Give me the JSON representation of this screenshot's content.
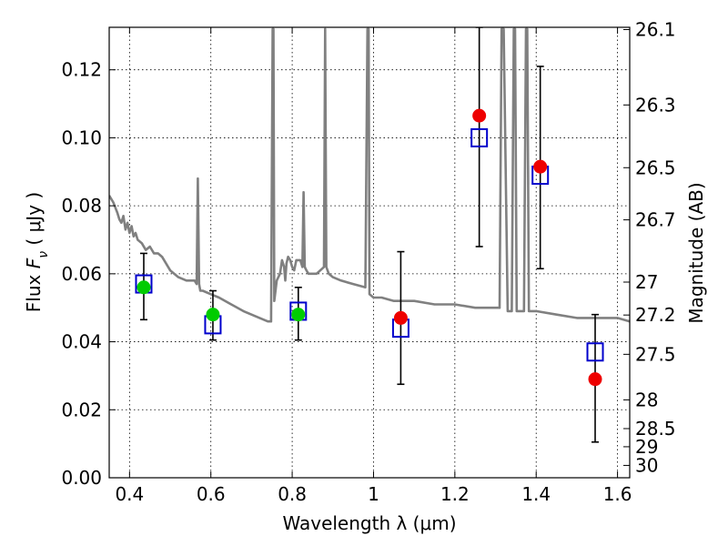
{
  "chart_data": {
    "type": "scatter",
    "title": "",
    "xlabel": "Wavelength  λ (μm)",
    "ylabel": "Flux  F_ν  ( μJy )",
    "ylabel_parts": {
      "prefix": "Flux  ",
      "var": "F",
      "sub": "ν",
      "unit": "  ( μJy )"
    },
    "ylabel_right": "Magnitude (AB)",
    "xlim": [
      0.35,
      1.63
    ],
    "ylim": [
      0.0,
      0.1325
    ],
    "grid": true,
    "x_ticks": [
      0.4,
      0.6,
      0.8,
      1.0,
      1.2,
      1.4,
      1.6
    ],
    "x_tick_labels": [
      "0.4",
      "0.6",
      "0.8",
      "1",
      "1.2",
      "1.4",
      "1.6"
    ],
    "y_ticks": [
      0.0,
      0.02,
      0.04,
      0.06,
      0.08,
      0.1,
      0.12
    ],
    "y_tick_labels": [
      "0.00",
      "0.02",
      "0.04",
      "0.06",
      "0.08",
      "0.10",
      "0.12"
    ],
    "right_axis": {
      "scale": "ab_magnitude",
      "ticks": [
        26.1,
        26.3,
        26.5,
        26.7,
        27,
        27.2,
        27.5,
        28,
        28.5,
        29,
        30
      ],
      "tick_labels": [
        "26.1",
        "26.3",
        "26.5",
        "26.7",
        "27",
        "27.2",
        "27.5",
        "28",
        "28.5",
        "29",
        "30"
      ]
    },
    "model_spectrum": {
      "color": "#808080",
      "x": [
        0.35,
        0.36,
        0.37,
        0.375,
        0.38,
        0.385,
        0.39,
        0.395,
        0.4,
        0.405,
        0.41,
        0.415,
        0.42,
        0.43,
        0.44,
        0.45,
        0.46,
        0.47,
        0.48,
        0.5,
        0.52,
        0.54,
        0.56,
        0.565,
        0.568,
        0.571,
        0.574,
        0.58,
        0.6,
        0.62,
        0.65,
        0.68,
        0.7,
        0.72,
        0.74,
        0.748,
        0.752,
        0.754,
        0.756,
        0.758,
        0.762,
        0.77,
        0.775,
        0.78,
        0.783,
        0.786,
        0.79,
        0.795,
        0.8,
        0.805,
        0.81,
        0.82,
        0.825,
        0.828,
        0.831,
        0.835,
        0.84,
        0.86,
        0.878,
        0.881,
        0.884,
        0.89,
        0.9,
        0.92,
        0.95,
        0.98,
        0.985,
        0.988,
        0.99,
        1.0,
        1.02,
        1.05,
        1.08,
        1.1,
        1.15,
        1.2,
        1.25,
        1.3,
        1.31,
        1.315,
        1.32,
        1.33,
        1.34,
        1.345,
        1.348,
        1.352,
        1.36,
        1.37,
        1.375,
        1.378,
        1.382,
        1.4,
        1.45,
        1.5,
        1.55,
        1.58,
        1.6,
        1.63
      ],
      "y": [
        0.083,
        0.081,
        0.078,
        0.076,
        0.075,
        0.077,
        0.073,
        0.075,
        0.072,
        0.074,
        0.071,
        0.072,
        0.07,
        0.069,
        0.067,
        0.068,
        0.066,
        0.066,
        0.065,
        0.061,
        0.059,
        0.058,
        0.058,
        0.057,
        0.088,
        0.057,
        0.055,
        0.055,
        0.054,
        0.053,
        0.051,
        0.049,
        0.048,
        0.047,
        0.046,
        0.046,
        0.132,
        0.132,
        0.052,
        0.054,
        0.058,
        0.06,
        0.064,
        0.062,
        0.058,
        0.063,
        0.065,
        0.064,
        0.062,
        0.061,
        0.064,
        0.064,
        0.062,
        0.084,
        0.062,
        0.061,
        0.06,
        0.06,
        0.062,
        0.132,
        0.062,
        0.06,
        0.059,
        0.058,
        0.057,
        0.056,
        0.132,
        0.132,
        0.054,
        0.053,
        0.053,
        0.052,
        0.052,
        0.052,
        0.051,
        0.051,
        0.05,
        0.05,
        0.05,
        0.132,
        0.132,
        0.049,
        0.049,
        0.132,
        0.132,
        0.049,
        0.049,
        0.049,
        0.132,
        0.132,
        0.049,
        0.049,
        0.048,
        0.047,
        0.047,
        0.047,
        0.047,
        0.046
      ]
    },
    "series": [
      {
        "marker": "open-square",
        "color": "#0000cc",
        "points": [
          [
            0.435,
            0.057
          ],
          [
            0.605,
            0.045
          ],
          [
            0.815,
            0.049
          ],
          [
            1.067,
            0.044
          ],
          [
            1.26,
            0.1
          ],
          [
            1.41,
            0.089
          ],
          [
            1.545,
            0.037
          ]
        ]
      },
      {
        "marker": "filled-circle",
        "color": "#00cc00",
        "points": [
          [
            0.435,
            0.056
          ],
          [
            0.605,
            0.048
          ],
          [
            0.815,
            0.048
          ]
        ]
      },
      {
        "marker": "filled-circle",
        "color": "#ee0000",
        "points": [
          [
            1.067,
            0.047
          ],
          [
            1.26,
            0.1065
          ],
          [
            1.41,
            0.0915
          ],
          [
            1.545,
            0.029
          ]
        ]
      }
    ],
    "error_bars": [
      {
        "x": 0.435,
        "low": 0.0465,
        "high": 0.066
      },
      {
        "x": 0.605,
        "low": 0.0405,
        "high": 0.055
      },
      {
        "x": 0.815,
        "low": 0.0405,
        "high": 0.056
      },
      {
        "x": 1.067,
        "low": 0.0275,
        "high": 0.0665
      },
      {
        "x": 1.26,
        "low": 0.068,
        "high": 0.1325
      },
      {
        "x": 1.41,
        "low": 0.0615,
        "high": 0.121
      },
      {
        "x": 1.545,
        "low": 0.0105,
        "high": 0.048
      }
    ]
  }
}
